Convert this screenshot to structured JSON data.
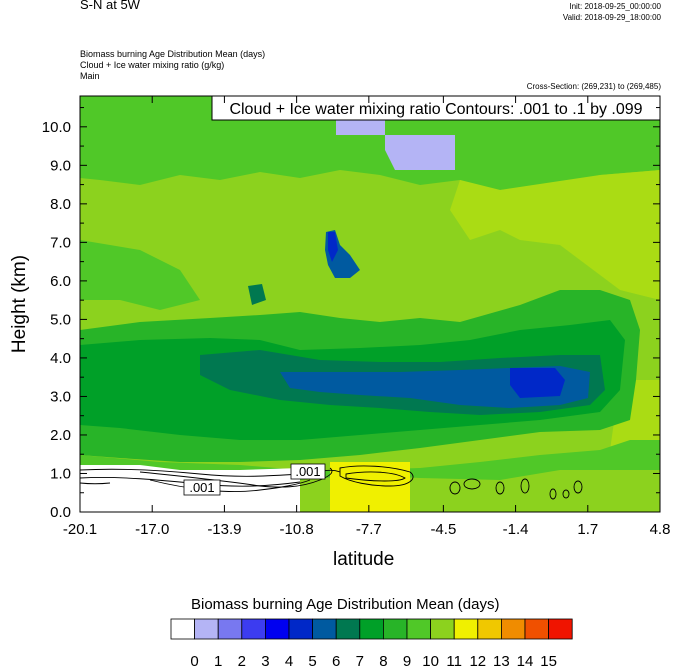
{
  "header": {
    "title": "S-N at 5W",
    "init": "Init: 2018-09-25_00:00:00",
    "valid": "Valid: 2018-09-29_18:00:00",
    "fields": [
      "Biomass burning Age Distribution Mean   (days)",
      "Cloud + Ice water mixing ratio   (g/kg)",
      "Main"
    ],
    "cross_section": "Cross-Section: (269,231) to (269,485)"
  },
  "chart_data": {
    "type": "heatmap",
    "contour_label": "Cloud + Ice water mixing ratio Contours: .001 to .1 by .099",
    "contour_values": [
      ".001",
      ".001"
    ],
    "xlabel": "latitude",
    "ylabel": "Height (km)",
    "x_ticks": [
      "-20.1",
      "-17.0",
      "-13.9",
      "-10.8",
      "-7.7",
      "-4.5",
      "-1.4",
      "1.7",
      "4.8"
    ],
    "y_ticks": [
      "0.0",
      "1.0",
      "2.0",
      "3.0",
      "4.0",
      "5.0",
      "6.0",
      "7.0",
      "8.0",
      "9.0",
      "10.0"
    ],
    "xlim": [
      -20.1,
      4.8
    ],
    "ylim": [
      0,
      10.8
    ],
    "colorbar": {
      "title": "Biomass burning Age Distribution Mean  (days)",
      "labels": [
        "0",
        "1",
        "2",
        "3",
        "4",
        "5",
        "6",
        "7",
        "8",
        "9",
        "10",
        "11",
        "12",
        "13",
        "14",
        "15"
      ],
      "colors": [
        "#ffffff",
        "#b4b4f5",
        "#7878f0",
        "#3c3cf0",
        "#0000f0",
        "#0028c8",
        "#005aa0",
        "#007850",
        "#00a028",
        "#28b428",
        "#50c828",
        "#8cd21e",
        "#f0f000",
        "#f0c800",
        "#f08c00",
        "#f05000",
        "#f01400"
      ]
    }
  }
}
